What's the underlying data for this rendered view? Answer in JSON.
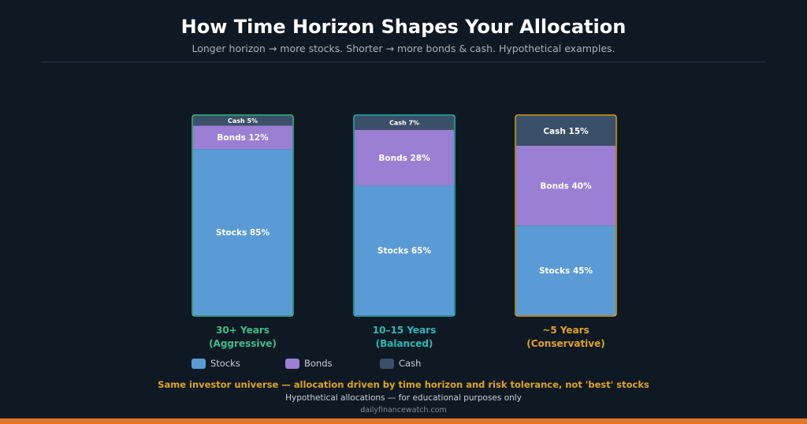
{
  "header": {
    "title": "How Time Horizon Shapes Your Allocation",
    "subtitle": "Longer horizon → more stocks. Shorter → more bonds & cash. Hypothetical examples."
  },
  "chart_data": {
    "type": "bar",
    "stacked": true,
    "orientation": "vertical",
    "ylim": [
      0,
      100
    ],
    "unit": "%",
    "categories": [
      {
        "line1": "30+ Years",
        "line2": "(Aggressive)",
        "color": "#3dbd8c"
      },
      {
        "line1": "10–15 Years",
        "line2": "(Balanced)",
        "color": "#27b9b8"
      },
      {
        "line1": "~5 Years",
        "line2": "(Conservative)",
        "color": "#e0a422"
      }
    ],
    "series": [
      {
        "name": "Stocks",
        "color": "#5b9bd5",
        "values": [
          85,
          65,
          45
        ]
      },
      {
        "name": "Bonds",
        "color": "#9b7fd4",
        "values": [
          12,
          28,
          40
        ]
      },
      {
        "name": "Cash",
        "color": "#3a5068",
        "values": [
          5,
          7,
          15
        ]
      }
    ],
    "legend": {
      "placement": "bottom-left"
    }
  },
  "footer": {
    "note": "Same investor universe — allocation driven by time horizon and risk tolerance, not 'best' stocks",
    "disclaimer": "Hypothetical allocations — for educational purposes only",
    "source": "dailyfinancewatch.com"
  },
  "colors": {
    "background": "#0f1923",
    "accent_bottom_bar": "#e0772a"
  }
}
